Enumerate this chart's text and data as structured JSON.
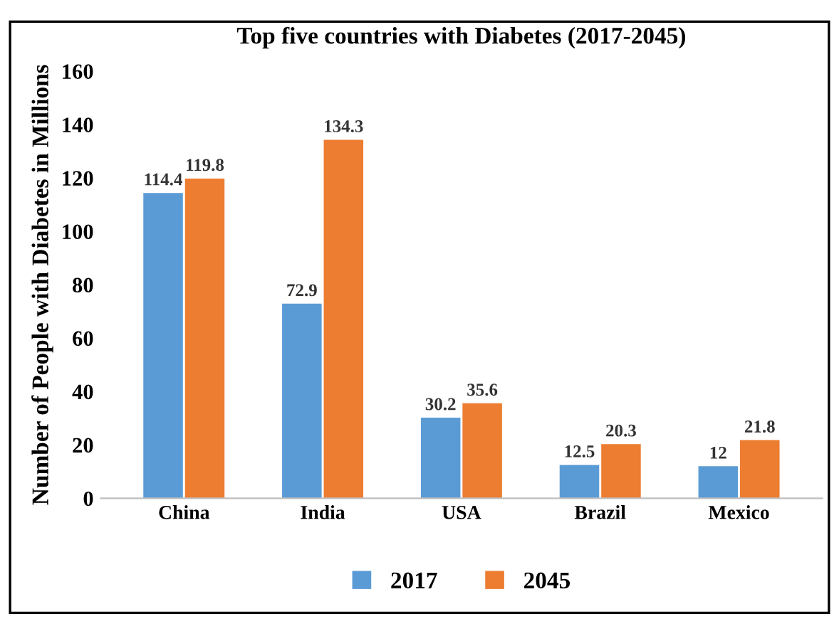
{
  "chart_data": {
    "type": "bar",
    "title": "Top five countries with Diabetes (2017-2045)",
    "ylabel": "Number of People with Diabetes in Millions",
    "categories": [
      "China",
      "India",
      "USA",
      "Brazil",
      "Mexico"
    ],
    "series": [
      {
        "name": "2017",
        "color": "#5b9bd5",
        "values": [
          114.4,
          72.9,
          30.2,
          12.5,
          12
        ]
      },
      {
        "name": "2045",
        "color": "#ed7d31",
        "values": [
          119.8,
          134.3,
          35.6,
          20.3,
          21.8
        ]
      }
    ],
    "ylim": [
      0,
      160
    ],
    "yticks": [
      0,
      20,
      40,
      60,
      80,
      100,
      120,
      140,
      160
    ],
    "grid": false,
    "legend": "bottom",
    "data_labels": true
  }
}
